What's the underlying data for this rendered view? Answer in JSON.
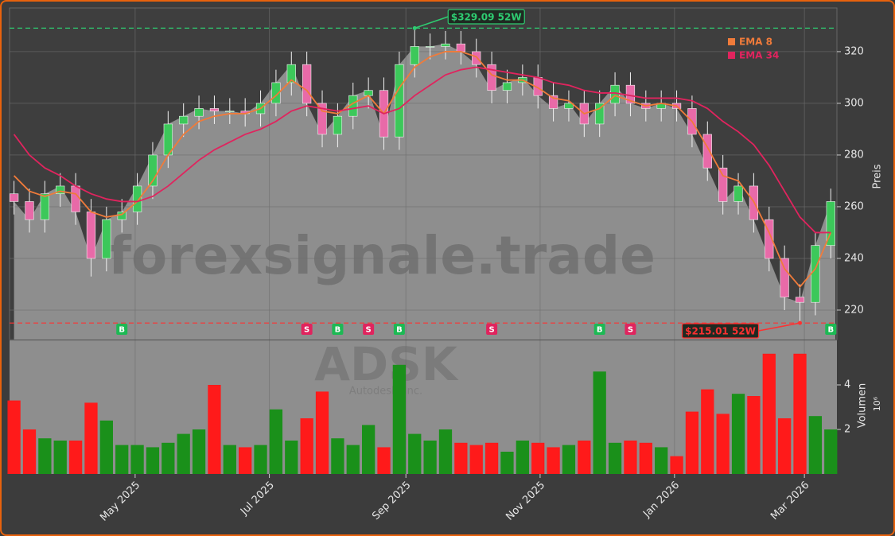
{
  "chart_data": {
    "type": "candlestick",
    "watermark": "forexsignale.trade",
    "ticker": "ADSK",
    "company": "Autodesk, Inc.",
    "categories": [
      null,
      null,
      null,
      null,
      null,
      null,
      null,
      null,
      null,
      null,
      null,
      null,
      null,
      null,
      null,
      null,
      null,
      null,
      null,
      null,
      null,
      null,
      null,
      null,
      null,
      null,
      null,
      null,
      null,
      null,
      null,
      null,
      null,
      null,
      null,
      null,
      null,
      null,
      null,
      null,
      null,
      null,
      null,
      null,
      null,
      null,
      null,
      null,
      null,
      null,
      null,
      null,
      null,
      null
    ],
    "xlim": [
      -0.29,
      53.4
    ],
    "xticks": [
      {
        "value": 7.86,
        "label": "May 2025"
      },
      {
        "value": 16.57,
        "label": "Jul 2025"
      },
      {
        "value": 25.43,
        "label": "Sep 2025"
      },
      {
        "value": 34.14,
        "label": "Nov 2025"
      },
      {
        "value": 42.86,
        "label": "Jan 2026"
      },
      {
        "value": 51.29,
        "label": "Mar 2026"
      }
    ],
    "open": [
      265,
      262,
      255,
      265,
      268,
      258,
      240,
      255,
      258,
      268,
      280,
      292,
      295,
      298,
      297,
      297,
      296,
      300,
      308,
      315,
      300,
      288,
      295,
      303,
      305,
      287,
      315,
      322,
      322,
      323,
      320,
      315,
      305,
      308,
      310,
      303,
      298,
      300,
      292,
      300,
      307,
      300,
      298,
      300,
      298,
      288,
      275,
      262,
      268,
      255,
      240,
      225,
      223,
      245
    ],
    "high": [
      270,
      267,
      270,
      273,
      273,
      263,
      260,
      263,
      273,
      285,
      297,
      300,
      303,
      303,
      302,
      302,
      305,
      313,
      320,
      320,
      305,
      300,
      308,
      310,
      310,
      320,
      329.09,
      327,
      328,
      328,
      325,
      320,
      313,
      315,
      315,
      308,
      305,
      305,
      305,
      312,
      312,
      305,
      305,
      305,
      303,
      293,
      280,
      273,
      273,
      260,
      245,
      230,
      250,
      267
    ],
    "low": [
      257,
      250,
      250,
      260,
      253,
      233,
      235,
      250,
      253,
      263,
      275,
      287,
      290,
      292,
      292,
      291,
      291,
      295,
      303,
      295,
      283,
      283,
      290,
      298,
      282,
      282,
      310,
      317,
      317,
      315,
      310,
      300,
      300,
      303,
      298,
      293,
      293,
      287,
      287,
      295,
      295,
      293,
      293,
      293,
      283,
      270,
      257,
      257,
      250,
      235,
      220,
      215.01,
      218,
      240
    ],
    "close": [
      262,
      255,
      265,
      268,
      258,
      240,
      255,
      258,
      268,
      280,
      292,
      295,
      298,
      297,
      297,
      296,
      300,
      308,
      315,
      300,
      288,
      295,
      303,
      305,
      287,
      315,
      322,
      322,
      323,
      320,
      315,
      305,
      308,
      310,
      303,
      298,
      300,
      292,
      300,
      307,
      300,
      298,
      300,
      298,
      288,
      275,
      262,
      268,
      255,
      240,
      225,
      223,
      245,
      262
    ],
    "up_color": "#3cc85a",
    "down_color": "#e86aa8",
    "area_color": "#8e8e8e",
    "ylim": [
      208.6,
      336.9
    ],
    "yticks": [
      220,
      240,
      260,
      280,
      300,
      320
    ],
    "ylabel": "Preis",
    "grid": true,
    "series": [
      {
        "name": "EMA 8",
        "color": "#f07b3a",
        "values": [
          272,
          266,
          264,
          266,
          265,
          258,
          256,
          257,
          262,
          270,
          280,
          288,
          293,
          295,
          296,
          296,
          298,
          303,
          309,
          305,
          297,
          296,
          300,
          303,
          296,
          306,
          314,
          318,
          320,
          320,
          318,
          311,
          309,
          309,
          306,
          302,
          301,
          296,
          298,
          303,
          301,
          299,
          300,
          299,
          293,
          283,
          272,
          270,
          262,
          250,
          236,
          229,
          236,
          250
        ]
      },
      {
        "name": "EMA 34",
        "color": "#e0245e",
        "values": [
          288,
          280,
          275,
          272,
          268,
          265,
          263,
          262,
          262,
          264,
          268,
          273,
          278,
          282,
          285,
          288,
          290,
          293,
          297,
          299,
          298,
          297,
          298,
          299,
          296,
          298,
          303,
          307,
          311,
          313,
          314,
          313,
          312,
          311,
          310,
          308,
          307,
          305,
          304,
          304,
          303,
          302,
          302,
          302,
          301,
          298,
          293,
          289,
          284,
          276,
          266,
          256,
          250,
          250
        ]
      }
    ],
    "legend": "upper right",
    "annotations": [
      {
        "text": "$329.09 52W",
        "x": 26,
        "value": 329.09,
        "color": "#2ecc71"
      },
      {
        "text": "$215.01 52W",
        "x": 51,
        "value": 215.01,
        "color": "#ff3030"
      }
    ],
    "signals": [
      {
        "x": 7,
        "label": "B"
      },
      {
        "x": 19,
        "label": "S"
      },
      {
        "x": 21,
        "label": "B"
      },
      {
        "x": 23,
        "label": "S"
      },
      {
        "x": 25,
        "label": "B"
      },
      {
        "x": 31,
        "label": "S"
      },
      {
        "x": 38,
        "label": "B"
      },
      {
        "x": 40,
        "label": "S"
      },
      {
        "x": 53,
        "label": "B"
      }
    ],
    "signal_colors": {
      "B": "#1db954",
      "S": "#e0245e"
    },
    "volume": {
      "values": [
        3.3,
        2.0,
        1.6,
        1.5,
        1.5,
        3.2,
        2.4,
        1.3,
        1.3,
        1.2,
        1.4,
        1.8,
        2.0,
        4.0,
        1.3,
        1.2,
        1.3,
        2.9,
        1.5,
        2.5,
        3.7,
        1.6,
        1.3,
        2.2,
        1.2,
        4.9,
        1.8,
        1.5,
        2.0,
        1.4,
        1.3,
        1.4,
        1.0,
        1.5,
        1.4,
        1.2,
        1.3,
        1.5,
        4.6,
        1.4,
        1.5,
        1.4,
        1.2,
        0.8,
        2.8,
        3.8,
        2.7,
        3.6,
        3.5,
        5.4,
        2.5,
        5.4,
        2.6,
        2.0
      ],
      "up_color": "#1a901a",
      "down_color": "#ff1a1a",
      "ylim": [
        0,
        6
      ],
      "yticks": [
        2,
        4
      ],
      "ylabel": "Volumen",
      "scale_label": "10⁶"
    }
  }
}
